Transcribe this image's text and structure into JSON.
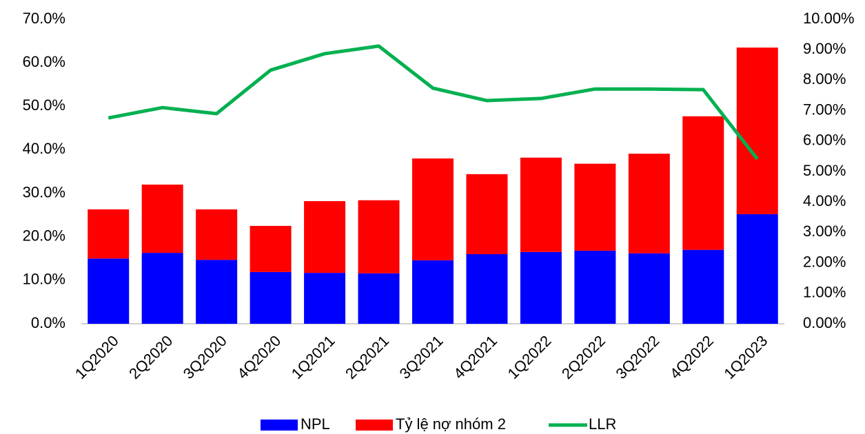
{
  "chart_data": {
    "type": "bar",
    "stacked": true,
    "categories": [
      "1Q2020",
      "2Q2020",
      "3Q2020",
      "4Q2020",
      "1Q2021",
      "2Q2021",
      "3Q2021",
      "4Q2021",
      "1Q2022",
      "2Q2022",
      "3Q2022",
      "4Q2022",
      "1Q2023"
    ],
    "series": [
      {
        "name": "NPL",
        "color": "#0000ff",
        "values": [
          15.0,
          16.3,
          14.7,
          11.9,
          11.7,
          11.6,
          14.6,
          16.0,
          16.5,
          16.8,
          16.2,
          17.0,
          25.2
        ]
      },
      {
        "name": "Tỷ lệ nợ nhóm 2",
        "color": "#ff0000",
        "values": [
          11.3,
          15.7,
          11.6,
          10.6,
          16.5,
          16.8,
          23.4,
          18.4,
          21.7,
          20.0,
          22.9,
          30.7,
          38.3
        ]
      },
      {
        "name": "LLR",
        "color": "#00b050",
        "type": "line",
        "axis": "y2",
        "values": [
          6.76,
          7.1,
          6.9,
          8.33,
          8.87,
          9.12,
          7.74,
          7.33,
          7.4,
          7.71,
          7.71,
          7.69,
          5.41
        ]
      }
    ],
    "ylim": [
      0,
      70
    ],
    "yticks": [
      {
        "value": 0,
        "label": "0.0%"
      },
      {
        "value": 10,
        "label": "10.0%"
      },
      {
        "value": 20,
        "label": "20.0%"
      },
      {
        "value": 30,
        "label": "30.0%"
      },
      {
        "value": 40,
        "label": "40.0%"
      },
      {
        "value": 50,
        "label": "50.0%"
      },
      {
        "value": 60,
        "label": "60.0%"
      },
      {
        "value": 70,
        "label": "70.0%"
      }
    ],
    "y2lim": [
      0,
      10
    ],
    "y2ticks": [
      {
        "value": 0,
        "label": "0.00%"
      },
      {
        "value": 1,
        "label": "1.00%"
      },
      {
        "value": 2,
        "label": "2.00%"
      },
      {
        "value": 3,
        "label": "3.00%"
      },
      {
        "value": 4,
        "label": "4.00%"
      },
      {
        "value": 5,
        "label": "5.00%"
      },
      {
        "value": 6,
        "label": "6.00%"
      },
      {
        "value": 7,
        "label": "7.00%"
      },
      {
        "value": 8,
        "label": "8.00%"
      },
      {
        "value": 9,
        "label": "9.00%"
      },
      {
        "value": 10,
        "label": "10.00%"
      }
    ],
    "grid": false,
    "legend": "bottom"
  }
}
